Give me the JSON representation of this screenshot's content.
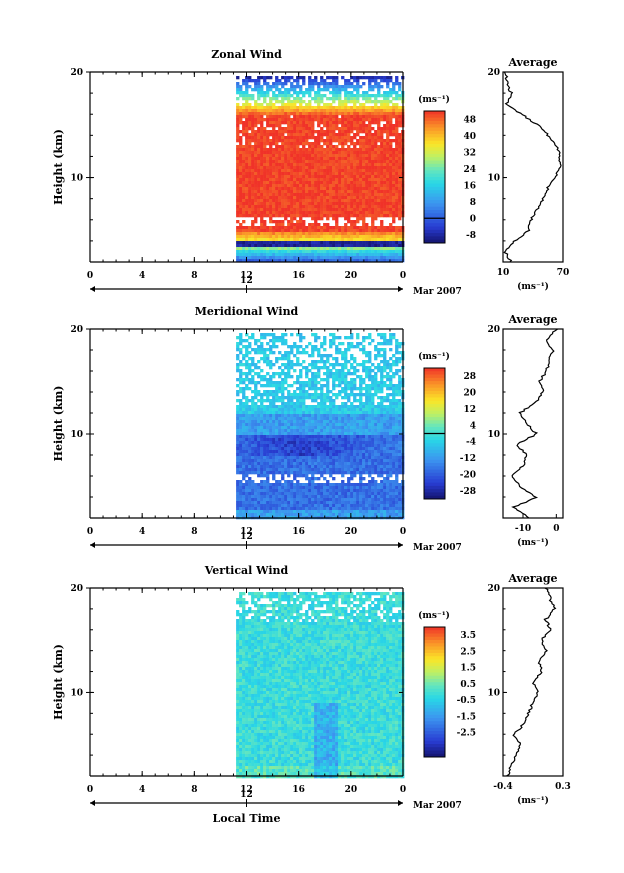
{
  "chart_data": [
    {
      "type": "heatmap",
      "title": "Zonal Wind",
      "ylabel": "Height (km)",
      "yticks": [
        "20",
        "10"
      ],
      "xticks": [
        "0",
        "4",
        "8",
        "12",
        "16",
        "20",
        "0"
      ],
      "date_tick": "12",
      "date_suffix": "Mar 2007",
      "xlim": [
        0,
        24
      ],
      "ylim": [
        2,
        20
      ],
      "data_start_hour": 11.2,
      "colorbar": {
        "unit": "(ms⁻¹)",
        "ticks": [
          "48",
          "40",
          "32",
          "24",
          "16",
          "8",
          "0",
          "-8"
        ],
        "range": [
          -12,
          52
        ],
        "zero_line": true
      },
      "average": {
        "title": "Average",
        "xlabel": "(ms⁻¹)",
        "xticks": [
          "10",
          "70"
        ],
        "yticks": [
          "20",
          "10"
        ],
        "xlim": [
          10,
          70
        ],
        "heights": [
          2,
          3,
          4,
          5,
          6,
          7,
          8,
          9,
          10,
          11,
          12,
          13,
          14,
          15,
          16,
          17,
          18,
          19,
          20
        ],
        "values": [
          18,
          12,
          22,
          35,
          38,
          45,
          50,
          55,
          62,
          67,
          67,
          63,
          55,
          45,
          28,
          14,
          18,
          14,
          12
        ]
      }
    },
    {
      "type": "heatmap",
      "title": "Meridional Wind",
      "ylabel": "Height (km)",
      "yticks": [
        "20",
        "10"
      ],
      "xticks": [
        "0",
        "4",
        "8",
        "12",
        "16",
        "20",
        "0"
      ],
      "date_tick": "12",
      "date_suffix": "Mar 2007",
      "xlim": [
        0,
        24
      ],
      "ylim": [
        2,
        20
      ],
      "data_start_hour": 11.2,
      "colorbar": {
        "unit": "(ms⁻¹)",
        "ticks": [
          "28",
          "20",
          "12",
          "4",
          "-4",
          "-12",
          "-20",
          "-28"
        ],
        "range": [
          -32,
          32
        ],
        "zero_line": true
      },
      "average": {
        "title": "Average",
        "xlabel": "(ms⁻¹)",
        "xticks": [
          "-10",
          "0"
        ],
        "yticks": [
          "20",
          "10"
        ],
        "xlim": [
          -16,
          2
        ],
        "heights": [
          2,
          3,
          4,
          5,
          6,
          7,
          8,
          9,
          10,
          11,
          12,
          13,
          14,
          15,
          16,
          17,
          18,
          19,
          20
        ],
        "values": [
          -8,
          -13,
          -6,
          -11,
          -13,
          -10,
          -9,
          -12,
          -6,
          -9,
          -11,
          -6,
          -4,
          -5,
          -3,
          -2,
          -1,
          -3,
          0
        ]
      }
    },
    {
      "type": "heatmap",
      "title": "Vertical Wind",
      "ylabel": "Height (km)",
      "yticks": [
        "20",
        "10"
      ],
      "xticks": [
        "0",
        "4",
        "8",
        "12",
        "16",
        "20",
        "0"
      ],
      "date_tick": "12",
      "date_suffix": "Mar 2007",
      "xlabel": "Local Time",
      "xlim": [
        0,
        24
      ],
      "ylim": [
        2,
        20
      ],
      "data_start_hour": 11.2,
      "colorbar": {
        "unit": "(ms⁻¹)",
        "ticks": [
          "3.5",
          "2.5",
          "1.5",
          "0.5",
          "-0.5",
          "-1.5",
          "-2.5"
        ],
        "range": [
          -4,
          4
        ],
        "zero_line": false
      },
      "average": {
        "title": "Average",
        "xlabel": "(ms⁻¹)",
        "xticks": [
          "-0.4",
          "0.3"
        ],
        "yticks": [
          "20",
          "10"
        ],
        "xlim": [
          -0.4,
          0.3
        ],
        "heights": [
          2,
          3,
          4,
          5,
          6,
          7,
          8,
          9,
          10,
          11,
          12,
          13,
          14,
          15,
          16,
          17,
          18,
          19,
          20
        ],
        "values": [
          -0.35,
          -0.3,
          -0.25,
          -0.2,
          -0.28,
          -0.15,
          -0.1,
          -0.05,
          0.0,
          -0.05,
          0.05,
          0.02,
          0.1,
          0.05,
          0.15,
          0.1,
          0.2,
          0.15,
          0.1
        ]
      }
    }
  ]
}
